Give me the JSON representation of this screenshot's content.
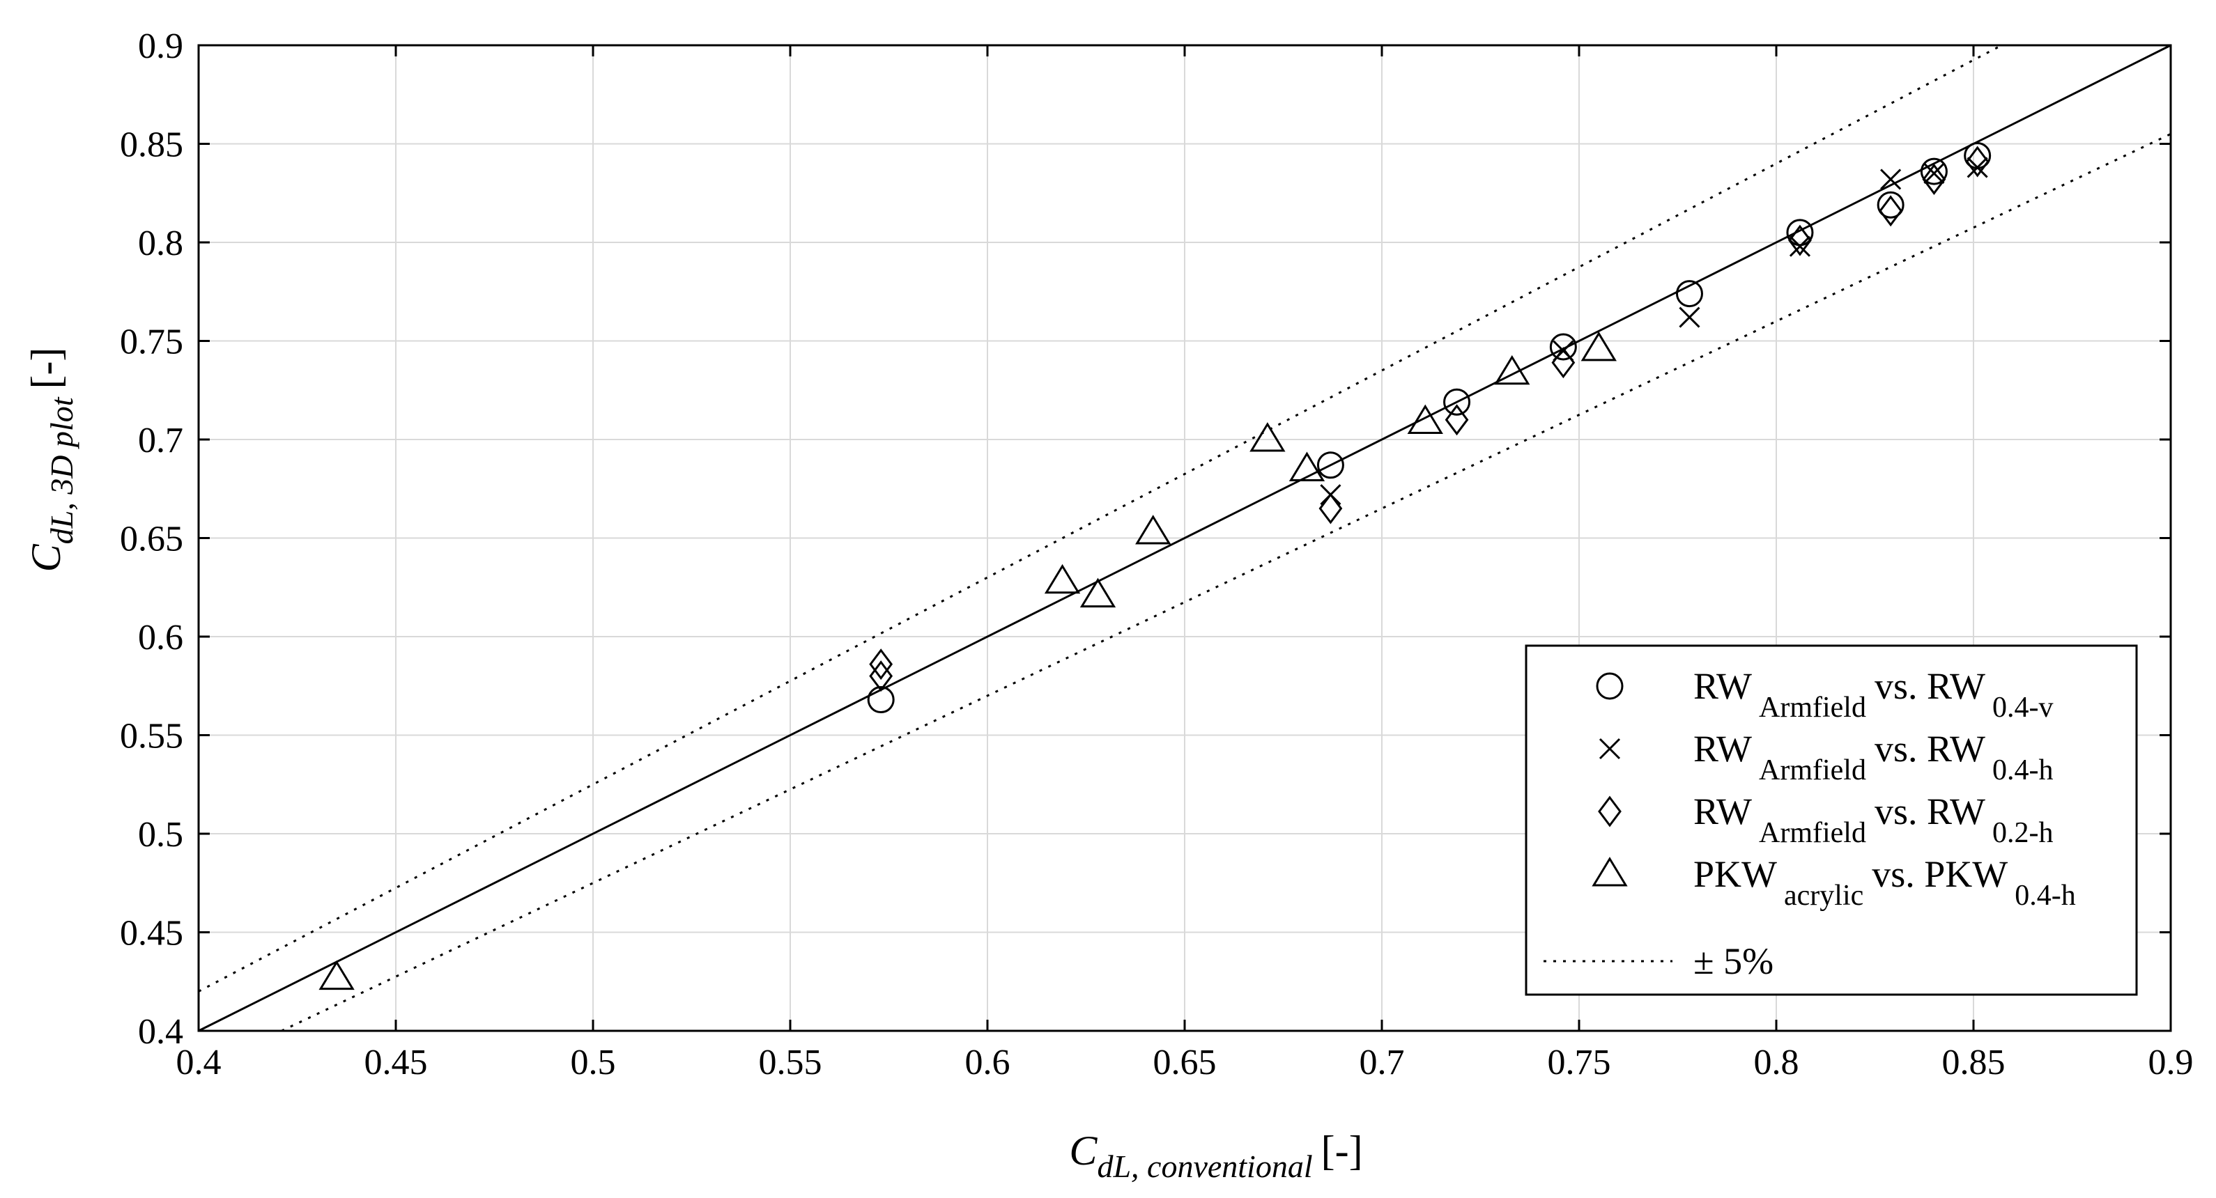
{
  "chart_data": {
    "type": "scatter",
    "xlim": [
      0.4,
      0.9
    ],
    "ylim": [
      0.4,
      0.9
    ],
    "x_ticks": [
      "0.4",
      "0.45",
      "0.5",
      "0.55",
      "0.6",
      "0.65",
      "0.7",
      "0.75",
      "0.8",
      "0.85",
      "0.9"
    ],
    "y_ticks": [
      "0.4",
      "0.45",
      "0.5",
      "0.55",
      "0.6",
      "0.65",
      "0.7",
      "0.75",
      "0.8",
      "0.85",
      "0.9"
    ],
    "grid": true,
    "xlabel": {
      "main": "C",
      "sub": "dL, conventional",
      "unit": "[-]"
    },
    "ylabel": {
      "main": "C",
      "sub": "dL, 3D plot",
      "unit": "[-]"
    },
    "legend_position": "bottom-right",
    "reference_lines": [
      {
        "name": "1:1 line",
        "style": "solid",
        "factor": 1.0
      },
      {
        "name": "+5%",
        "style": "dotted",
        "factor": 1.05
      },
      {
        "name": "-5%",
        "style": "dotted",
        "factor": 0.95
      }
    ],
    "series": [
      {
        "name": "RW Armfield vs. RW 0.4-v",
        "marker": "circle",
        "legend": {
          "main": "RW",
          "sub1": "Armfield",
          "mid": "vs. RW",
          "sub2": "0.4-v"
        },
        "points": [
          [
            0.573,
            0.568
          ],
          [
            0.687,
            0.687
          ],
          [
            0.719,
            0.719
          ],
          [
            0.746,
            0.747
          ],
          [
            0.778,
            0.774
          ],
          [
            0.806,
            0.805
          ],
          [
            0.829,
            0.819
          ],
          [
            0.84,
            0.836
          ],
          [
            0.851,
            0.844
          ]
        ]
      },
      {
        "name": "RW Armfield vs. RW 0.4-h",
        "marker": "x",
        "legend": {
          "main": "RW",
          "sub1": "Armfield",
          "mid": "vs. RW",
          "sub2": "0.4-h"
        },
        "points": [
          [
            0.687,
            0.672
          ],
          [
            0.778,
            0.762
          ],
          [
            0.806,
            0.798
          ],
          [
            0.829,
            0.832
          ],
          [
            0.84,
            0.835
          ],
          [
            0.851,
            0.838
          ],
          [
            0.746,
            0.745
          ]
        ]
      },
      {
        "name": "RW Armfield vs. RW 0.2-h",
        "marker": "diamond",
        "legend": {
          "main": "RW",
          "sub1": "Armfield",
          "mid": "vs. RW",
          "sub2": "0.2-h"
        },
        "points": [
          [
            0.573,
            0.58
          ],
          [
            0.573,
            0.586
          ],
          [
            0.687,
            0.665
          ],
          [
            0.719,
            0.71
          ],
          [
            0.746,
            0.739
          ],
          [
            0.806,
            0.801
          ],
          [
            0.829,
            0.816
          ],
          [
            0.84,
            0.832
          ],
          [
            0.851,
            0.841
          ]
        ]
      },
      {
        "name": "PKW acrylic vs. PKW 0.4-h",
        "marker": "triangle",
        "legend": {
          "main": "PKW",
          "sub1": "acrylic",
          "mid": "vs. PKW",
          "sub2": "0.4-h"
        },
        "points": [
          [
            0.435,
            0.427
          ],
          [
            0.619,
            0.628
          ],
          [
            0.628,
            0.621
          ],
          [
            0.642,
            0.653
          ],
          [
            0.671,
            0.7
          ],
          [
            0.681,
            0.685
          ],
          [
            0.711,
            0.709
          ],
          [
            0.733,
            0.734
          ],
          [
            0.755,
            0.746
          ]
        ]
      }
    ],
    "legend_extra": "± 5%"
  }
}
